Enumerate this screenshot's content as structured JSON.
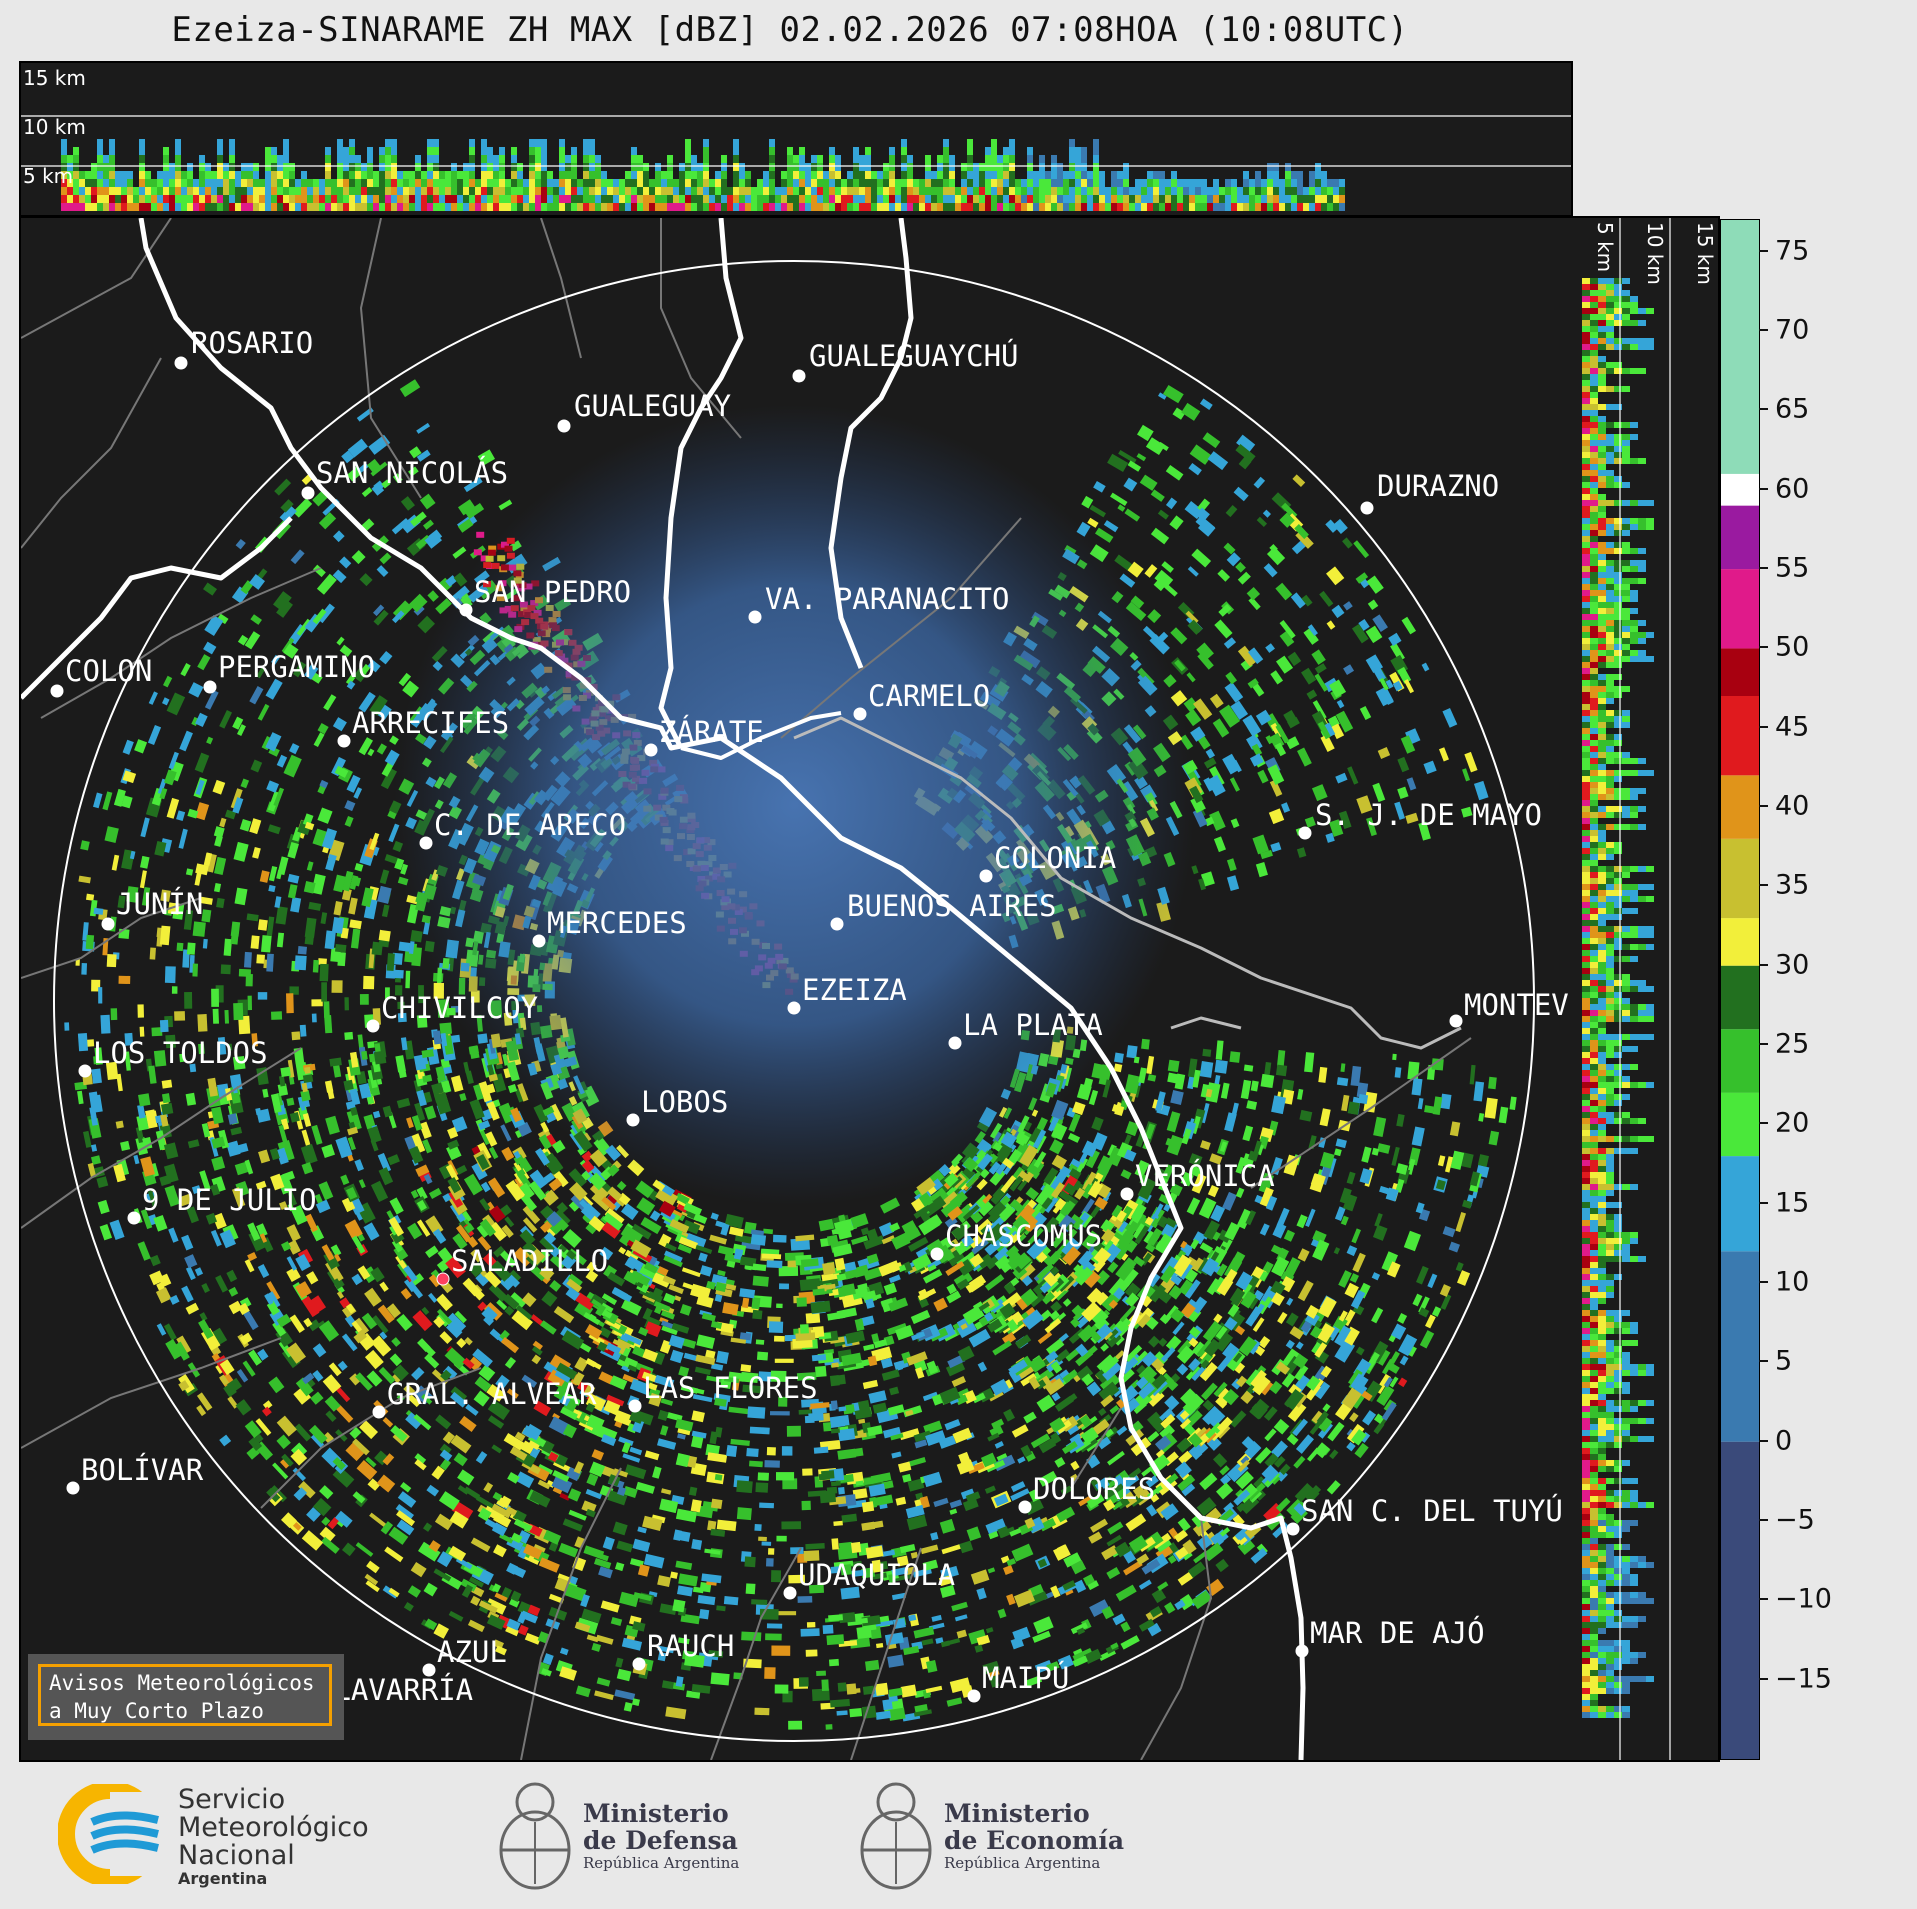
{
  "title": "Ezeiza-SINARAME ZH MAX [dBZ] 02.02.2026 07:08HOA (10:08UTC)",
  "top_section": {
    "labels": [
      "15 km",
      "10 km",
      "5 km"
    ]
  },
  "side_section": {
    "labels": [
      "5 km",
      "10 km",
      "15 km"
    ]
  },
  "colorbar": {
    "unit": "dBZ",
    "ticks": [
      "75",
      "70",
      "65",
      "60",
      "55",
      "50",
      "45",
      "40",
      "35",
      "30",
      "25",
      "20",
      "15",
      "10",
      "5",
      "0",
      "−5",
      "−10",
      "−15"
    ],
    "tick_values": [
      75,
      70,
      65,
      60,
      55,
      50,
      45,
      40,
      35,
      30,
      25,
      20,
      15,
      10,
      5,
      0,
      -5,
      -10,
      -15
    ],
    "range": [
      -20,
      77
    ],
    "stops": [
      {
        "from": -20,
        "to": 0,
        "color": "#3a4a7a"
      },
      {
        "from": 0,
        "to": 12,
        "color": "#3a7ab0"
      },
      {
        "from": 12,
        "to": 18,
        "color": "#35a5d8"
      },
      {
        "from": 18,
        "to": 22,
        "color": "#4ae83a"
      },
      {
        "from": 22,
        "to": 26,
        "color": "#36c02c"
      },
      {
        "from": 26,
        "to": 30,
        "color": "#22701f"
      },
      {
        "from": 30,
        "to": 33,
        "color": "#f2ef3a"
      },
      {
        "from": 33,
        "to": 38,
        "color": "#c8c030"
      },
      {
        "from": 38,
        "to": 42,
        "color": "#e0941a"
      },
      {
        "from": 42,
        "to": 47,
        "color": "#e01a1e"
      },
      {
        "from": 47,
        "to": 50,
        "color": "#a80010"
      },
      {
        "from": 50,
        "to": 55,
        "color": "#e01a8a"
      },
      {
        "from": 55,
        "to": 59,
        "color": "#9a1aa0"
      },
      {
        "from": 59,
        "to": 61,
        "color": "#ffffff"
      },
      {
        "from": 61,
        "to": 77,
        "color": "#8edcb8"
      }
    ]
  },
  "cities": [
    {
      "name": "ROSARIO"
    },
    {
      "name": "GUALEGUAYCHÚ"
    },
    {
      "name": "GUALEGUAY"
    },
    {
      "name": "SAN NICOLÁS"
    },
    {
      "name": "DURAZNO"
    },
    {
      "name": "SAN PEDRO"
    },
    {
      "name": "VA. PARANACITO"
    },
    {
      "name": "COLON"
    },
    {
      "name": "PERGAMINO"
    },
    {
      "name": "CARMELO"
    },
    {
      "name": "ARRECIFES"
    },
    {
      "name": "ZÁRATE"
    },
    {
      "name": "S. J. DE MAYO"
    },
    {
      "name": "C. DE ARECO"
    },
    {
      "name": "COLONIA"
    },
    {
      "name": "JUNÍN"
    },
    {
      "name": "BUENOS AIRES"
    },
    {
      "name": "MERCEDES"
    },
    {
      "name": "EZEIZA"
    },
    {
      "name": "MONTEV"
    },
    {
      "name": "CHIVILCOY"
    },
    {
      "name": "LA PLATA"
    },
    {
      "name": "LOS TOLDOS"
    },
    {
      "name": "LOBOS"
    },
    {
      "name": "VERÓNICA"
    },
    {
      "name": "9 DE JULIO"
    },
    {
      "name": "CHASCOMUS"
    },
    {
      "name": "SALADILLO"
    },
    {
      "name": "GRAL. ALVEAR"
    },
    {
      "name": "LAS FLORES"
    },
    {
      "name": "BOLÍVAR"
    },
    {
      "name": "DOLORES"
    },
    {
      "name": "SAN C. DEL TUYÚ"
    },
    {
      "name": "UDAQUIOLA"
    },
    {
      "name": "AZUL"
    },
    {
      "name": "RAUCH"
    },
    {
      "name": "MAR DE AJÓ"
    },
    {
      "name": "MAIPÚ"
    },
    {
      "name": "OLAVARRÍA"
    }
  ],
  "alert_box": {
    "line1": "Avisos Meteorológicos",
    "line2": "a Muy Corto Plazo"
  },
  "footer": {
    "smn": {
      "line1": "Servicio",
      "line2": "Meteorológico",
      "line3": "Nacional",
      "line4": "Argentina"
    },
    "defensa": {
      "line1": "Ministerio",
      "line2": "de Defensa",
      "line3": "República Argentina"
    },
    "economia": {
      "line1": "Ministerio",
      "line2": "de Economía",
      "line3": "República Argentina"
    }
  },
  "colors": {
    "background": "#1b1b1b",
    "frame": "#e8e8e8",
    "accent": "#f5a000",
    "smn_blue": "#1f9ad6",
    "smn_yellow": "#f7b500"
  }
}
